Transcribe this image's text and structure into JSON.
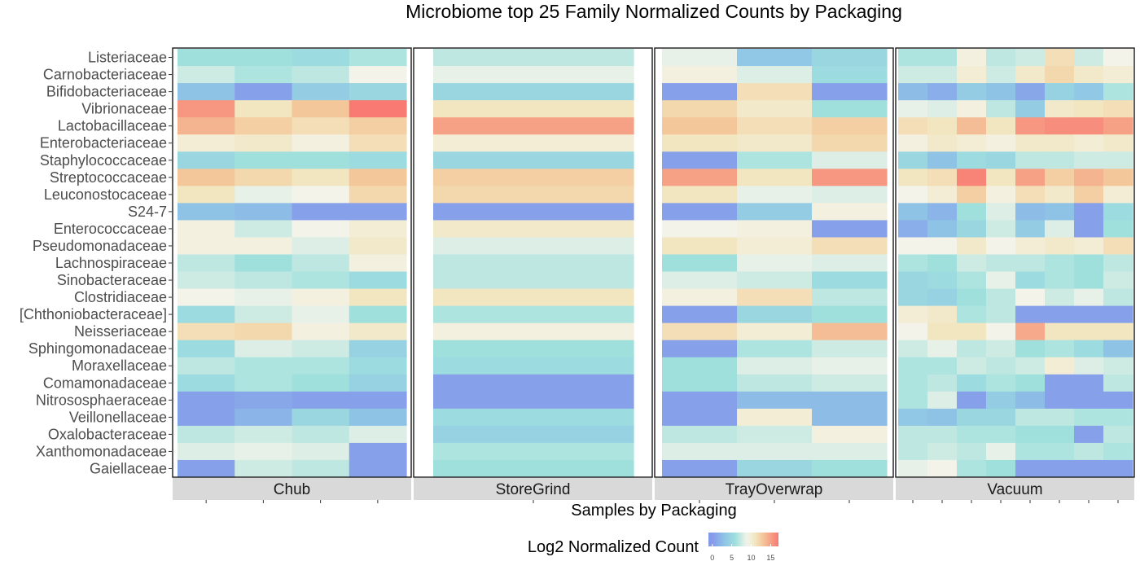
{
  "chart_data": {
    "type": "heatmap",
    "title": "Microbiome top 25 Family Normalized Counts by Packaging",
    "xlabel": "Samples by Packaging",
    "legend": {
      "title": "Log2 Normalized Count",
      "ticks": [
        "0",
        "5",
        "10",
        "15"
      ],
      "tick_values": [
        0,
        5,
        10,
        15
      ],
      "range": [
        -1,
        17
      ],
      "placement": "bottom"
    },
    "color_scale": {
      "stops": [
        {
          "value": 0,
          "color": "#8599EB"
        },
        {
          "value": 3,
          "color": "#8EC3E6"
        },
        {
          "value": 6,
          "color": "#9FE0DD"
        },
        {
          "value": 8,
          "color": "#DCEEE5"
        },
        {
          "value": 9,
          "color": "#F3F3EA"
        },
        {
          "value": 11,
          "color": "#F2E6C0"
        },
        {
          "value": 13,
          "color": "#F4C79A"
        },
        {
          "value": 17,
          "color": "#F87A72"
        }
      ]
    },
    "rows": [
      "Listeriaceae",
      "Carnobacteriaceae",
      "Bifidobacteriaceae",
      "Vibrionaceae",
      "Lactobacillaceae",
      "Enterobacteriaceae",
      "Staphylococcaceae",
      "Streptococcaceae",
      "Leuconostocaceae",
      "S24-7",
      "Enterococcaceae",
      "Pseudomonadaceae",
      "Lachnospiraceae",
      "Sinobacteraceae",
      "Clostridiaceae",
      "[Chthoniobacteraceae]",
      "Neisseriaceae",
      "Sphingomonadaceae",
      "Moraxellaceae",
      "Comamonadaceae",
      "Nitrososphaeraceae",
      "Veillonellaceae",
      "Oxalobacteraceae",
      "Xanthomonadaceae",
      "Gaiellaceae"
    ],
    "panels": [
      {
        "name": "Chub",
        "values": [
          [
            6,
            6,
            5.5,
            6.5
          ],
          [
            7.5,
            6.5,
            7,
            9
          ],
          [
            3,
            0.5,
            4,
            5
          ],
          [
            15.5,
            11,
            13,
            17
          ],
          [
            14,
            12.5,
            11.5,
            12.5
          ],
          [
            10,
            10.5,
            9.5,
            11.5
          ],
          [
            5,
            6,
            6,
            5.5
          ],
          [
            13,
            12,
            11,
            13
          ],
          [
            11,
            8.5,
            9,
            12
          ],
          [
            3,
            2.5,
            0.5,
            0.5
          ],
          [
            9.5,
            7.5,
            9,
            10
          ],
          [
            9.5,
            9.5,
            8,
            10.5
          ],
          [
            7,
            6,
            7,
            9.5
          ],
          [
            7.5,
            7,
            6.5,
            5.5
          ],
          [
            9,
            8.5,
            9.5,
            11
          ],
          [
            5.5,
            7.5,
            8.5,
            6
          ],
          [
            11.5,
            12,
            9.5,
            10.5
          ],
          [
            5.5,
            8,
            7.5,
            4.5
          ],
          [
            7,
            6.5,
            6.5,
            5.5
          ],
          [
            5.5,
            6.5,
            6,
            4.5
          ],
          [
            0.5,
            1,
            0.5,
            0.5
          ],
          [
            0.5,
            2,
            5,
            3
          ],
          [
            7,
            7.5,
            7,
            8
          ],
          [
            8,
            8.5,
            8,
            0.5
          ],
          [
            0.5,
            7.5,
            7,
            0.5
          ]
        ]
      },
      {
        "name": "StoreGrind",
        "values": [
          [
            7
          ],
          [
            8.5
          ],
          [
            5
          ],
          [
            11
          ],
          [
            15
          ],
          [
            10
          ],
          [
            5
          ],
          [
            12.5
          ],
          [
            12
          ],
          [
            0.5
          ],
          [
            10.5
          ],
          [
            8
          ],
          [
            7
          ],
          [
            7
          ],
          [
            11
          ],
          [
            6.5
          ],
          [
            9.5
          ],
          [
            6
          ],
          [
            5.5
          ],
          [
            0.5
          ],
          [
            0.5
          ],
          [
            5.5
          ],
          [
            4.5
          ],
          [
            6.5
          ],
          [
            6
          ]
        ]
      },
      {
        "name": "TrayOverwrap",
        "values": [
          [
            8.5,
            3.5,
            5
          ],
          [
            9.5,
            8,
            5.5
          ],
          [
            0.5,
            11.5,
            0.5
          ],
          [
            12,
            10.5,
            6
          ],
          [
            13,
            11.5,
            12.5
          ],
          [
            11,
            10.5,
            12
          ],
          [
            0.5,
            6.5,
            8
          ],
          [
            15,
            11,
            15.5
          ],
          [
            11,
            8.5,
            8
          ],
          [
            0.5,
            4,
            9.5
          ],
          [
            9,
            9.5,
            0.5
          ],
          [
            11,
            10,
            11.5
          ],
          [
            6,
            8.5,
            8
          ],
          [
            8,
            7.5,
            5.5
          ],
          [
            9.5,
            11.5,
            7
          ],
          [
            0.5,
            5,
            6
          ],
          [
            11.5,
            10,
            13.5
          ],
          [
            0.5,
            6.5,
            7.5
          ],
          [
            6,
            8,
            8.5
          ],
          [
            6,
            7,
            7.5
          ],
          [
            0.5,
            2.5,
            2.5
          ],
          [
            0.5,
            10,
            2.5
          ],
          [
            7,
            7.5,
            9.5
          ],
          [
            8,
            8,
            8
          ],
          [
            0.5,
            5,
            6
          ]
        ]
      },
      {
        "name": "Vacuum",
        "values": [
          [
            6.5,
            6.5,
            9.5,
            7,
            7.5,
            11.5,
            7.5,
            9
          ],
          [
            7.5,
            7.5,
            10,
            7.5,
            10.5,
            12,
            10.5,
            10
          ],
          [
            2.5,
            1.5,
            4,
            3,
            1,
            4.5,
            3.5,
            6.5
          ],
          [
            8.5,
            8,
            9.5,
            7,
            4,
            10.5,
            11,
            11.5
          ],
          [
            11.5,
            11,
            13.5,
            11,
            15.5,
            16,
            16,
            15
          ],
          [
            9.5,
            10.5,
            10,
            9.5,
            10.5,
            10.5,
            10,
            10.5
          ],
          [
            5,
            3,
            5.5,
            5,
            7,
            7,
            7.5,
            7.5
          ],
          [
            11,
            11.5,
            16.5,
            11,
            15,
            12.5,
            14,
            13
          ],
          [
            9,
            10,
            12.5,
            9.5,
            11.5,
            10.5,
            12.5,
            10
          ],
          [
            3,
            2,
            6,
            8,
            2.5,
            3,
            0.5,
            5.5
          ],
          [
            1.5,
            3,
            5,
            7.5,
            4,
            8,
            0.5,
            6
          ],
          [
            9,
            9,
            10.5,
            9,
            10,
            10.5,
            10,
            11.5
          ],
          [
            6.5,
            6,
            7.5,
            7,
            7,
            6.5,
            6,
            7
          ],
          [
            5,
            5.5,
            6.5,
            8.5,
            5.5,
            6.5,
            6,
            7.5
          ],
          [
            5,
            4.5,
            6,
            7,
            9,
            7.5,
            8.5,
            7
          ],
          [
            10,
            10.5,
            6.5,
            7,
            0.5,
            0.5,
            0.5,
            0.5
          ],
          [
            9,
            11,
            11,
            9,
            14.5,
            11,
            11,
            11
          ],
          [
            7.5,
            8.5,
            7,
            7.5,
            6,
            6.5,
            5.5,
            3
          ],
          [
            6.5,
            6.5,
            7.5,
            7,
            7.5,
            10,
            8,
            7.5
          ],
          [
            6.5,
            7,
            5.5,
            6.5,
            6,
            0.5,
            0.5,
            7
          ],
          [
            6.5,
            8,
            0.5,
            4,
            2.5,
            0.5,
            0.5,
            0.5
          ],
          [
            3.5,
            3,
            5,
            5,
            7,
            7,
            6.5,
            6.5
          ],
          [
            7,
            7,
            6.5,
            6.5,
            6,
            6,
            0.5,
            7
          ],
          [
            7,
            7.5,
            7,
            8.5,
            6.5,
            6.5,
            7,
            6.5
          ],
          [
            8.5,
            9,
            6.5,
            6,
            0.5,
            0.5,
            0.5,
            0.5
          ]
        ]
      }
    ],
    "colors": {
      "panel_border": "#1a1a1a",
      "strip_fill": "#d9d9d9",
      "tick": "#333333"
    }
  }
}
